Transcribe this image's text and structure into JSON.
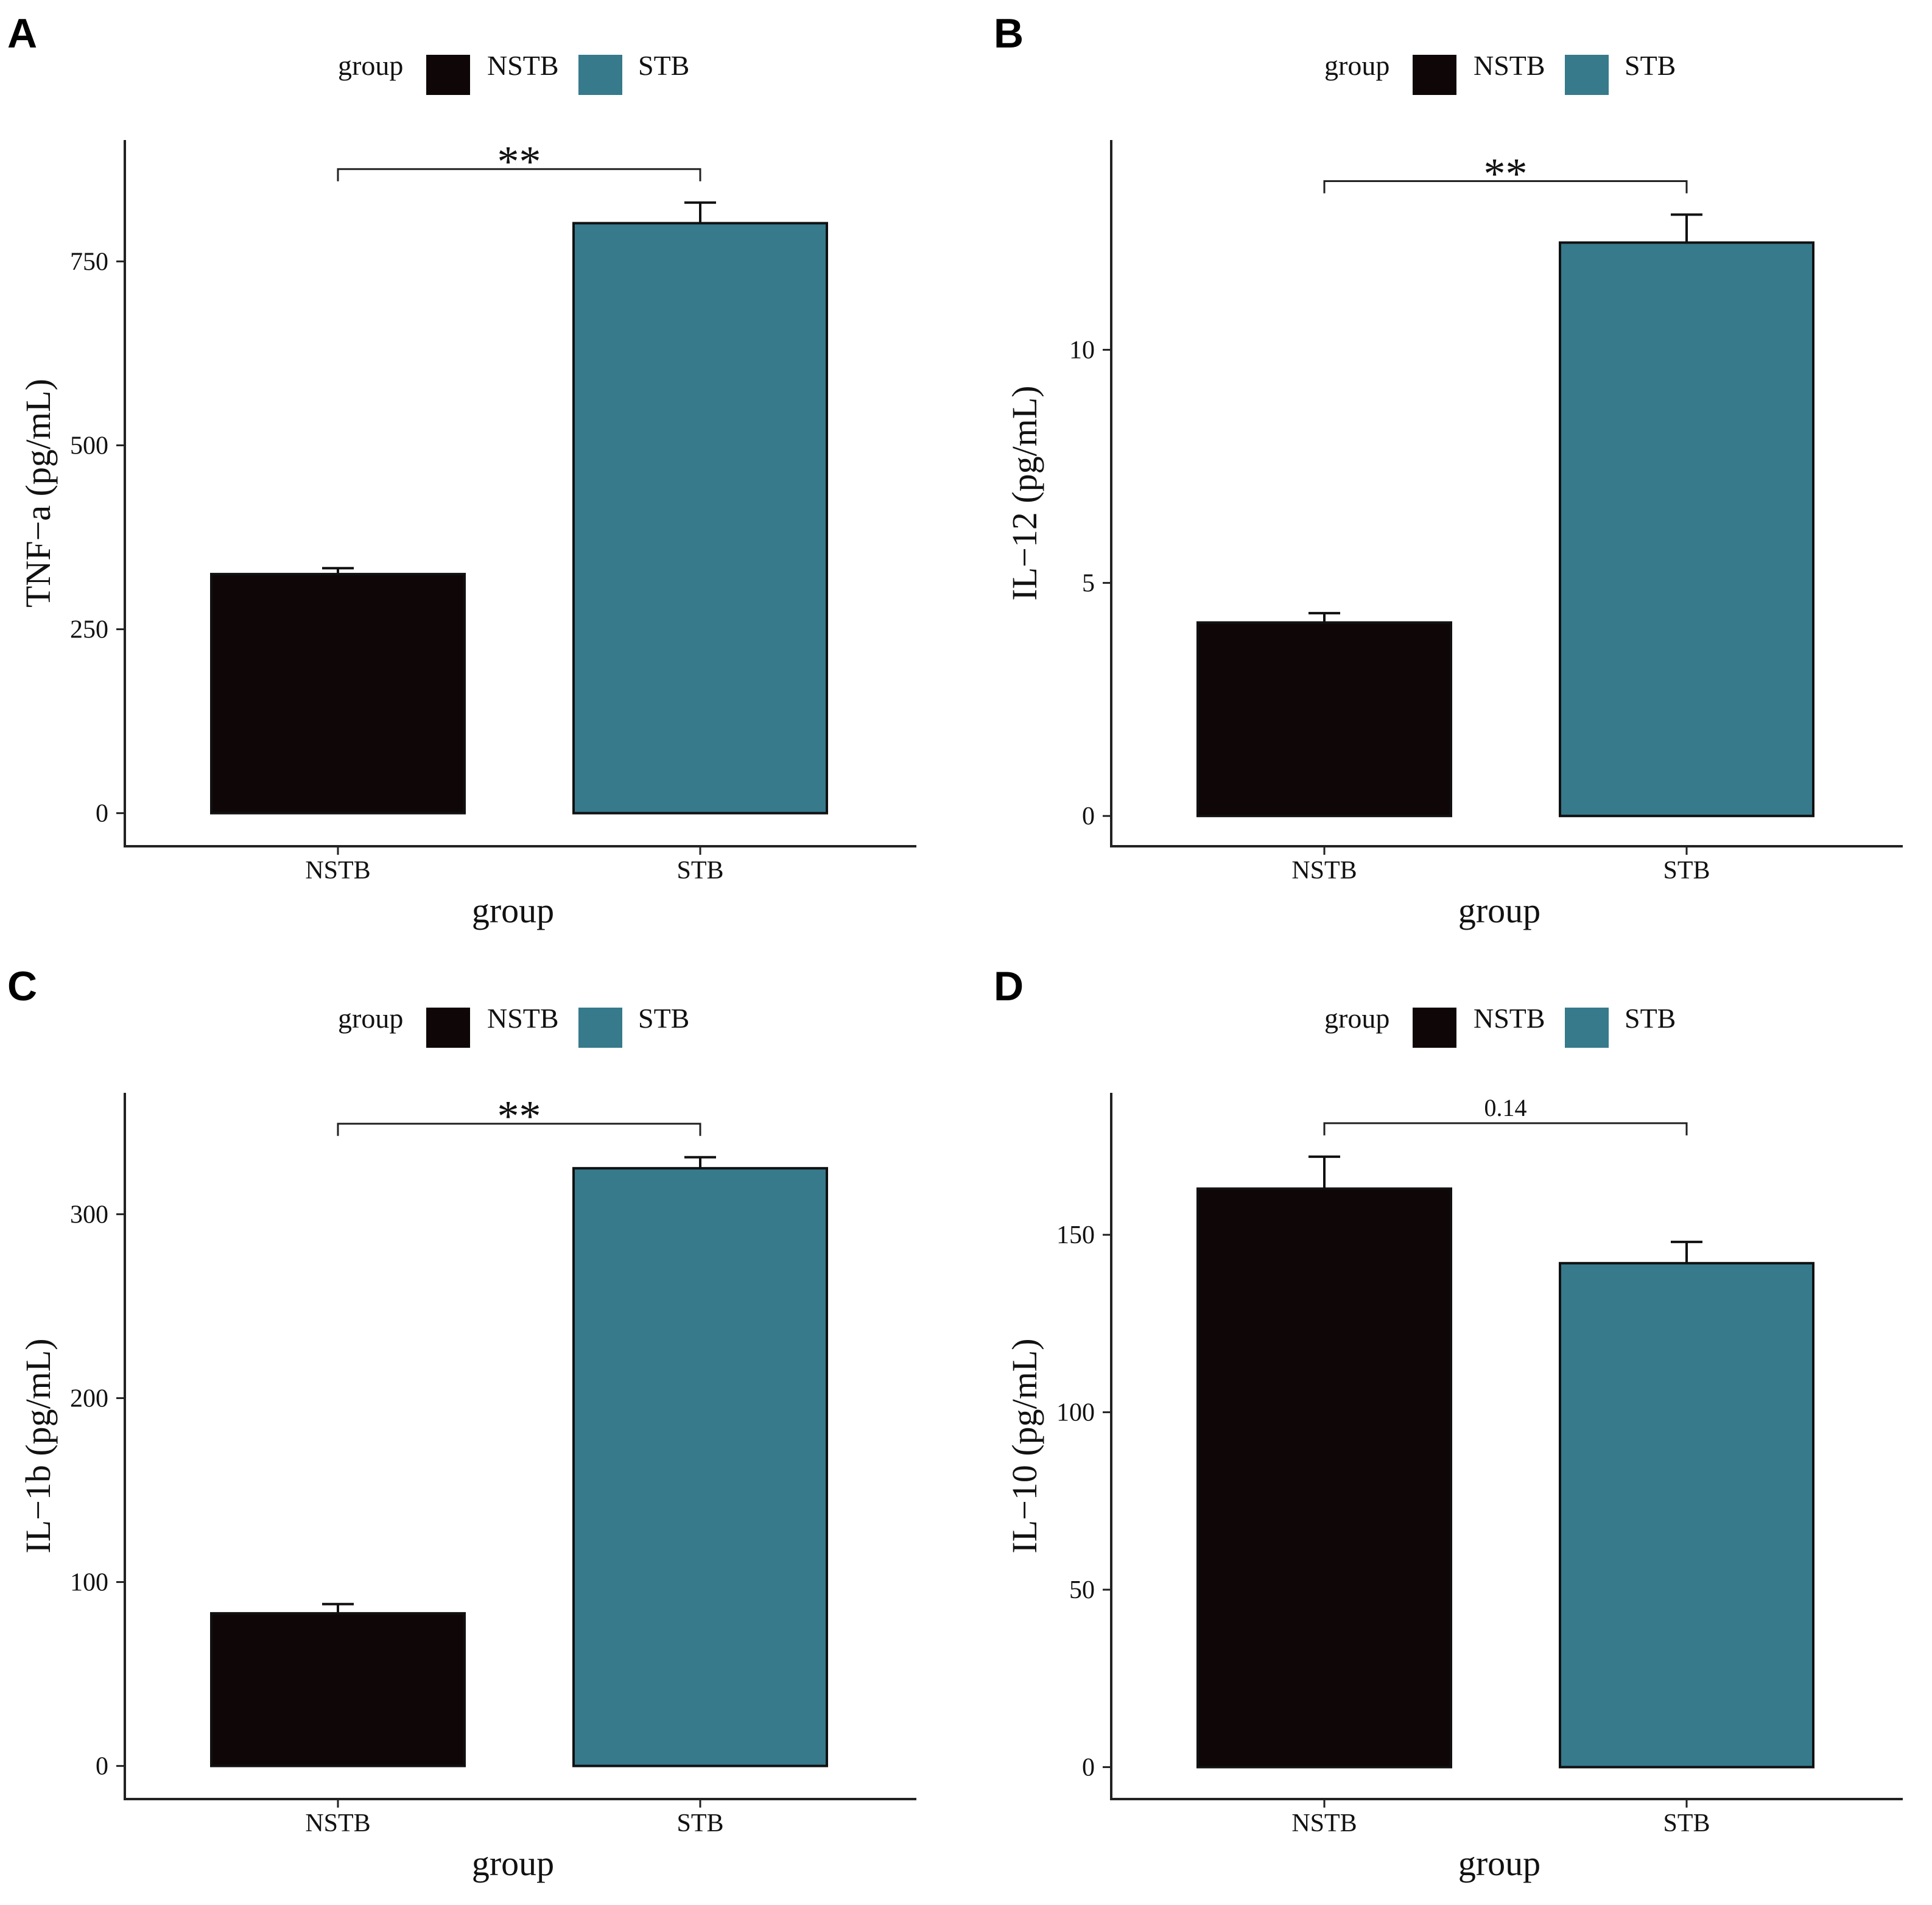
{
  "chart_data": [
    {
      "type": "bar",
      "panel": "A",
      "legend": {
        "title": "group",
        "entries": [
          "NSTB",
          "STB"
        ]
      },
      "categories": [
        "NSTB",
        "STB"
      ],
      "values": [
        325,
        802
      ],
      "errors": [
        8,
        28
      ],
      "xlabel": "group",
      "ylabel": "TNF−a (pg/mL)",
      "ylim": [
        -45,
        915
      ],
      "yticks": [
        0,
        250,
        500,
        750
      ],
      "ytick_labels": [
        "0",
        "250",
        "500",
        "750"
      ],
      "significance": "**",
      "colors": {
        "NSTB": "#0f0707",
        "STB": "#367a8c"
      }
    },
    {
      "type": "bar",
      "panel": "B",
      "legend": {
        "title": "group",
        "entries": [
          "NSTB",
          "STB"
        ]
      },
      "categories": [
        "NSTB",
        "STB"
      ],
      "values": [
        4.15,
        12.3
      ],
      "errors": [
        0.2,
        0.6
      ],
      "xlabel": "group",
      "ylabel": "IL−12 (pg/mL)",
      "ylim": [
        -0.65,
        14.5
      ],
      "yticks": [
        0,
        5,
        10
      ],
      "ytick_labels": [
        "0",
        "5",
        "10"
      ],
      "significance": "**",
      "colors": {
        "NSTB": "#0f0707",
        "STB": "#367a8c"
      }
    },
    {
      "type": "bar",
      "panel": "C",
      "legend": {
        "title": "group",
        "entries": [
          "NSTB",
          "STB"
        ]
      },
      "categories": [
        "NSTB",
        "STB"
      ],
      "values": [
        83,
        325
      ],
      "errors": [
        5,
        6
      ],
      "xlabel": "group",
      "ylabel": "IL−1b (pg/mL)",
      "ylim": [
        -18,
        366
      ],
      "yticks": [
        0,
        100,
        200,
        300
      ],
      "ytick_labels": [
        "0",
        "100",
        "200",
        "300"
      ],
      "significance": "**",
      "colors": {
        "NSTB": "#0f0707",
        "STB": "#367a8c"
      }
    },
    {
      "type": "bar",
      "panel": "D",
      "legend": {
        "title": "group",
        "entries": [
          "NSTB",
          "STB"
        ]
      },
      "categories": [
        "NSTB",
        "STB"
      ],
      "values": [
        163,
        142
      ],
      "errors": [
        9,
        6
      ],
      "xlabel": "group",
      "ylabel": "IL−10 (pg/mL)",
      "ylim": [
        -9,
        190
      ],
      "yticks": [
        0,
        50,
        100,
        150
      ],
      "ytick_labels": [
        "0",
        "50",
        "100",
        "150"
      ],
      "significance": "0.14",
      "colors": {
        "NSTB": "#0f0707",
        "STB": "#367a8c"
      }
    }
  ]
}
